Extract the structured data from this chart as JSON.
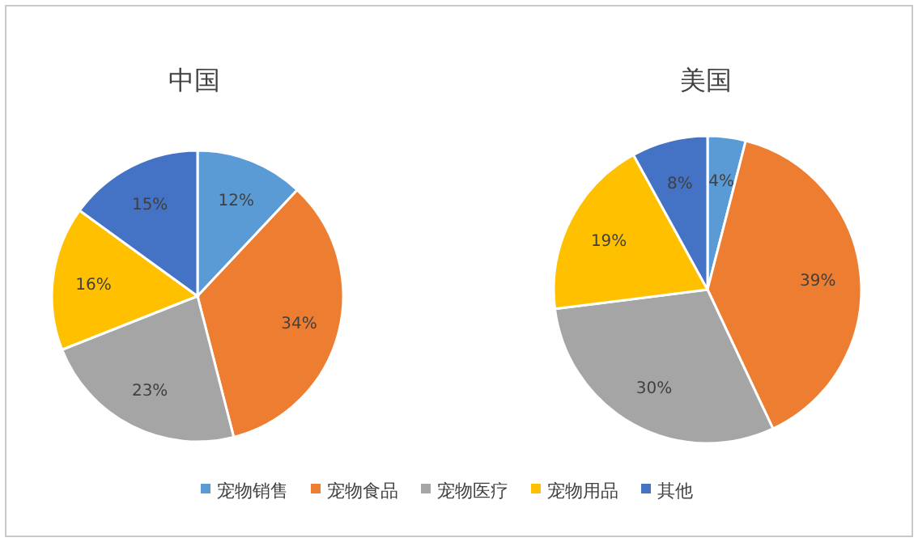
{
  "chart_data": [
    {
      "type": "pie",
      "title": "中国",
      "categories": [
        "宠物销售",
        "宠物食品",
        "宠物医疗",
        "宠物用品",
        "其他"
      ],
      "values": [
        12,
        34,
        23,
        16,
        15
      ],
      "value_labels": [
        "12%",
        "34%",
        "23%",
        "16%",
        "15%"
      ],
      "colors": [
        "#5b9bd5",
        "#ed7d31",
        "#a5a5a5",
        "#ffc000",
        "#4472c4"
      ],
      "legend": "bottom"
    },
    {
      "type": "pie",
      "title": "美国",
      "categories": [
        null,
        null,
        null,
        null,
        null
      ],
      "values": [
        4,
        39,
        30,
        19,
        8
      ],
      "value_labels": [
        "4%",
        "39%",
        "30%",
        "19%",
        "8%"
      ],
      "colors": [
        "#5b9bd5",
        "#ed7d31",
        "#a5a5a5",
        "#ffc000",
        "#4472c4"
      ]
    }
  ]
}
